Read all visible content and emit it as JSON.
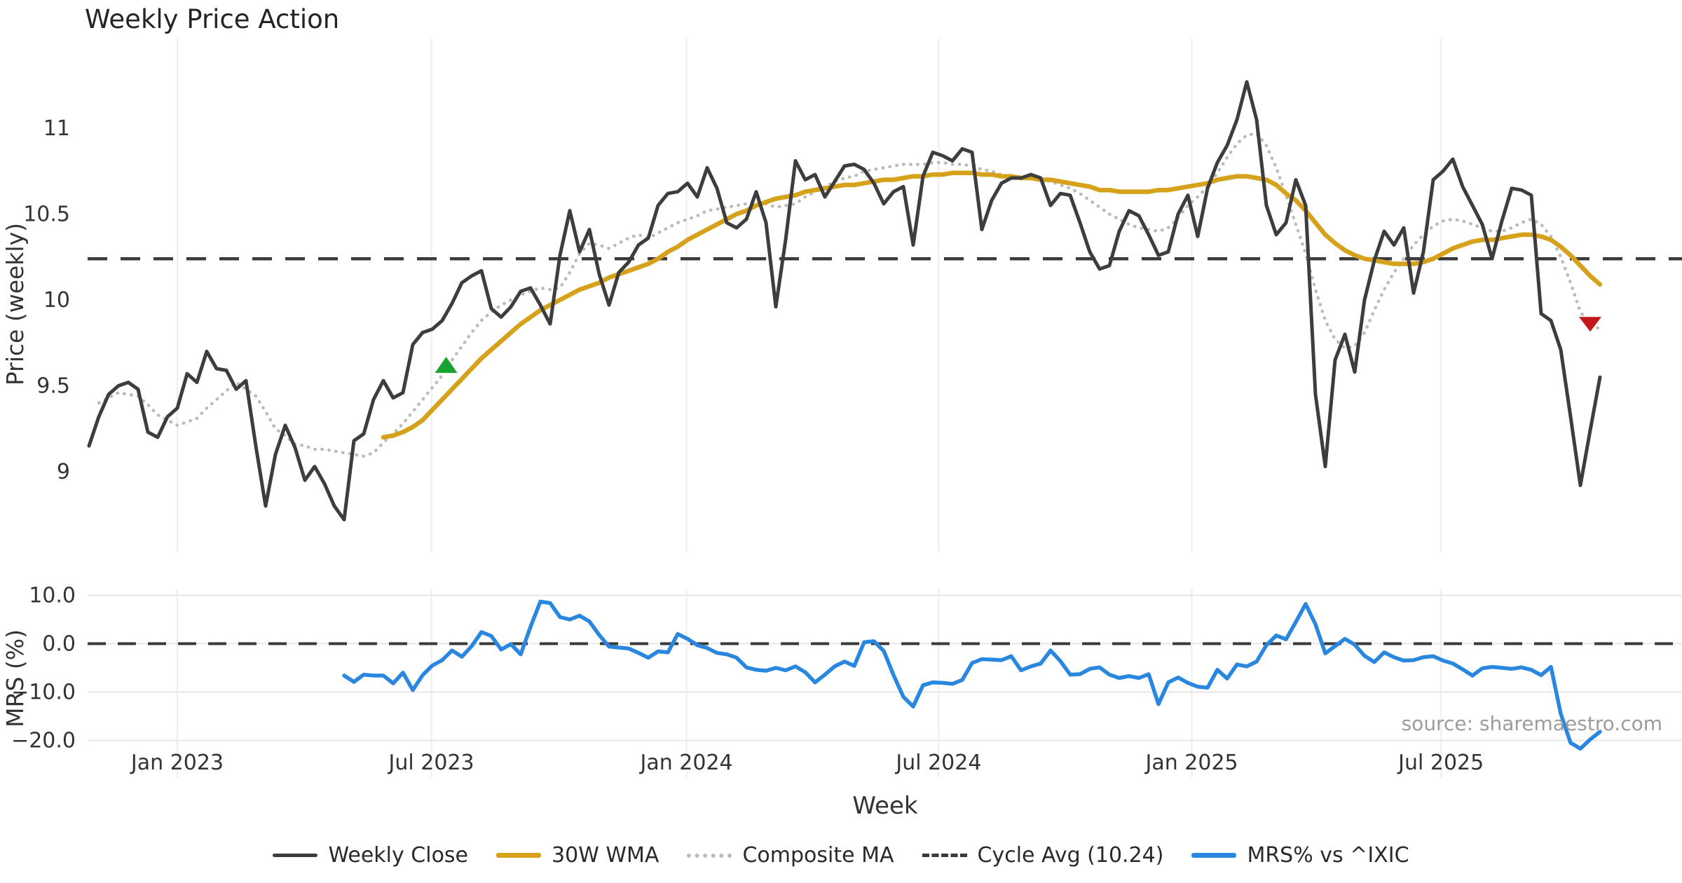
{
  "title": "Weekly Price Action",
  "source_note": "source: sharemaestro.com",
  "colors": {
    "weekly_close": "#3d3d3d",
    "wma_30w": "#d6a21b",
    "composite_ma": "#bbbbbb",
    "cycle_avg": "#3a3a3a",
    "mrs": "#2a87e0",
    "buy_marker": "#18a22f",
    "sell_marker": "#c51717",
    "grid": "#ededed",
    "grid_h": "#e7e7e7",
    "tick_text": "#3c3c3c"
  },
  "legend": [
    {
      "label": "Weekly Close",
      "swatch": "solid",
      "color": "#3d3d3d"
    },
    {
      "label": "30W WMA",
      "swatch": "solid-thick",
      "color": "#d6a21b"
    },
    {
      "label": "Composite MA",
      "swatch": "dotted",
      "color": "#bbbbbb"
    },
    {
      "label": "Cycle Avg (10.24)",
      "swatch": "dashed",
      "color": "#3a3a3a"
    },
    {
      "label": "MRS% vs ^IXIC",
      "swatch": "solid-thick",
      "color": "#2a87e0"
    }
  ],
  "chart_data": {
    "type": "line",
    "xlabel": "Week",
    "xticks": [
      {
        "label": "Jan 2023",
        "week": 9.0
      },
      {
        "label": "Jul 2023",
        "week": 34.9
      },
      {
        "label": "Jan 2024",
        "week": 60.9
      },
      {
        "label": "Jul 2024",
        "week": 86.6
      },
      {
        "label": "Jan 2025",
        "week": 112.4
      },
      {
        "label": "Jul 2025",
        "week": 137.8
      }
    ],
    "panels": [
      {
        "name": "price",
        "ylabel": "Price (weekly)",
        "ylim": [
          8.52,
          11.52
        ],
        "yticks": [
          {
            "label": "11",
            "value": 11
          },
          {
            "label": "10.5",
            "value": 10.5
          },
          {
            "label": "10",
            "value": 10
          },
          {
            "label": "9.5",
            "value": 9.5
          },
          {
            "label": "9",
            "value": 9
          }
        ],
        "cycle_avg": 10.24,
        "series": [
          {
            "name": "Weekly Close",
            "start_week": 0,
            "values": [
              9.15,
              9.32,
              9.45,
              9.5,
              9.52,
              9.48,
              9.23,
              9.2,
              9.32,
              9.37,
              9.57,
              9.52,
              9.7,
              9.6,
              9.59,
              9.48,
              9.53,
              9.15,
              8.8,
              9.1,
              9.27,
              9.14,
              8.95,
              9.03,
              8.93,
              8.8,
              8.72,
              9.18,
              9.22,
              9.42,
              9.53,
              9.43,
              9.46,
              9.74,
              9.81,
              9.83,
              9.88,
              9.98,
              10.1,
              10.14,
              10.17,
              9.95,
              9.9,
              9.96,
              10.05,
              10.07,
              9.97,
              9.86,
              10.26,
              10.52,
              10.28,
              10.41,
              10.15,
              9.97,
              10.16,
              10.22,
              10.32,
              10.36,
              10.55,
              10.62,
              10.63,
              10.68,
              10.6,
              10.77,
              10.65,
              10.45,
              10.42,
              10.47,
              10.63,
              10.45,
              9.96,
              10.35,
              10.81,
              10.7,
              10.73,
              10.6,
              10.69,
              10.78,
              10.79,
              10.76,
              10.68,
              10.56,
              10.63,
              10.66,
              10.32,
              10.72,
              10.86,
              10.84,
              10.81,
              10.88,
              10.86,
              10.41,
              10.58,
              10.68,
              10.71,
              10.71,
              10.73,
              10.71,
              10.55,
              10.62,
              10.61,
              10.45,
              10.28,
              10.18,
              10.2,
              10.4,
              10.52,
              10.49,
              10.38,
              10.26,
              10.28,
              10.5,
              10.61,
              10.37,
              10.65,
              10.8,
              10.9,
              11.05,
              11.27,
              11.05,
              10.55,
              10.38,
              10.45,
              10.7,
              10.55,
              9.45,
              9.03,
              9.65,
              9.8,
              9.58,
              10.0,
              10.23,
              10.4,
              10.32,
              10.42,
              10.04,
              10.28,
              10.7,
              10.75,
              10.82,
              10.66,
              10.55,
              10.44,
              10.24,
              10.46,
              10.65,
              10.64,
              10.61,
              9.92,
              9.88,
              9.71,
              9.32,
              8.92,
              9.24,
              9.55
            ]
          },
          {
            "name": "30W WMA",
            "start_week": 30,
            "values": [
              9.2,
              9.21,
              9.23,
              9.26,
              9.3,
              9.36,
              9.42,
              9.48,
              9.54,
              9.6,
              9.66,
              9.71,
              9.76,
              9.81,
              9.86,
              9.9,
              9.94,
              9.97,
              10.0,
              10.03,
              10.06,
              10.08,
              10.1,
              10.13,
              10.15,
              10.17,
              10.19,
              10.21,
              10.24,
              10.28,
              10.31,
              10.35,
              10.38,
              10.41,
              10.44,
              10.47,
              10.5,
              10.52,
              10.55,
              10.57,
              10.59,
              10.6,
              10.61,
              10.63,
              10.64,
              10.65,
              10.66,
              10.67,
              10.67,
              10.68,
              10.69,
              10.7,
              10.7,
              10.71,
              10.72,
              10.72,
              10.73,
              10.73,
              10.74,
              10.74,
              10.74,
              10.73,
              10.73,
              10.72,
              10.72,
              10.71,
              10.71,
              10.7,
              10.7,
              10.69,
              10.68,
              10.67,
              10.66,
              10.64,
              10.64,
              10.63,
              10.63,
              10.63,
              10.63,
              10.64,
              10.64,
              10.65,
              10.66,
              10.67,
              10.68,
              10.7,
              10.71,
              10.72,
              10.72,
              10.71,
              10.7,
              10.67,
              10.62,
              10.58,
              10.52,
              10.45,
              10.38,
              10.33,
              10.29,
              10.26,
              10.24,
              10.23,
              10.22,
              10.21,
              10.21,
              10.21,
              10.22,
              10.24,
              10.27,
              10.3,
              10.32,
              10.34,
              10.35,
              10.35,
              10.36,
              10.37,
              10.38,
              10.38,
              10.37,
              10.35,
              10.31,
              10.26,
              10.2,
              10.14,
              10.09
            ]
          },
          {
            "name": "Composite MA",
            "start_week": 1,
            "values": [
              9.4,
              9.43,
              9.46,
              9.45,
              9.44,
              9.39,
              9.33,
              9.3,
              9.27,
              9.29,
              9.31,
              9.37,
              9.42,
              9.47,
              9.52,
              9.48,
              9.44,
              9.35,
              9.25,
              9.21,
              9.16,
              9.15,
              9.13,
              9.13,
              9.12,
              9.11,
              9.1,
              9.09,
              9.11,
              9.17,
              9.22,
              9.28,
              9.35,
              9.42,
              9.49,
              9.56,
              9.65,
              9.73,
              9.81,
              9.88,
              9.93,
              9.97,
              10.0,
              10.03,
              10.05,
              10.07,
              10.06,
              10.07,
              10.16,
              10.27,
              10.33,
              10.32,
              10.3,
              10.33,
              10.36,
              10.38,
              10.36,
              10.39,
              10.42,
              10.45,
              10.47,
              10.49,
              10.52,
              10.53,
              10.54,
              10.55,
              10.56,
              10.57,
              10.56,
              10.54,
              10.55,
              10.56,
              10.6,
              10.63,
              10.66,
              10.69,
              10.71,
              10.72,
              10.75,
              10.76,
              10.77,
              10.78,
              10.79,
              10.79,
              10.79,
              10.8,
              10.8,
              10.79,
              10.79,
              10.78,
              10.76,
              10.75,
              10.73,
              10.72,
              10.71,
              10.71,
              10.7,
              10.69,
              10.67,
              10.65,
              10.62,
              10.58,
              10.54,
              10.5,
              10.47,
              10.44,
              10.42,
              10.41,
              10.4,
              10.42,
              10.48,
              10.55,
              10.6,
              10.66,
              10.74,
              10.83,
              10.91,
              10.96,
              10.97,
              10.9,
              10.77,
              10.61,
              10.44,
              10.27,
              10.06,
              9.88,
              9.77,
              9.72,
              9.73,
              9.81,
              9.94,
              10.06,
              10.16,
              10.24,
              10.32,
              10.38,
              10.43,
              10.46,
              10.47,
              10.46,
              10.44,
              10.42,
              10.4,
              10.4,
              10.42,
              10.45,
              10.47,
              10.44,
              10.37,
              10.25,
              10.1,
              9.93,
              9.86,
              9.83
            ]
          }
        ],
        "markers": [
          {
            "shape": "triangle-up",
            "week": 36.4,
            "price": 9.62,
            "color": "#18a22f"
          },
          {
            "shape": "triangle-down",
            "week": 153.0,
            "price": 9.86,
            "color": "#c51717"
          }
        ]
      },
      {
        "name": "mrs",
        "ylabel": "MRS (%)",
        "ylim": [
          -27.8,
          11.4
        ],
        "yticks": [
          {
            "label": "10.0",
            "value": 10
          },
          {
            "label": "0.0",
            "value": 0
          },
          {
            "label": "−10.0",
            "value": -10
          },
          {
            "label": "−20.0",
            "value": -20
          }
        ],
        "zero_line": 0,
        "series": [
          {
            "name": "MRS% vs ^IXIC",
            "start_week": 26,
            "values": [
              -6.6,
              -7.9,
              -6.4,
              -6.6,
              -6.6,
              -8.2,
              -6.0,
              -9.6,
              -6.5,
              -4.5,
              -3.4,
              -1.4,
              -2.7,
              -0.5,
              2.4,
              1.6,
              -1.2,
              -0.1,
              -2.2,
              3.5,
              8.7,
              8.4,
              5.5,
              5.0,
              5.8,
              4.6,
              1.8,
              -0.6,
              -0.8,
              -1.0,
              -1.9,
              -2.9,
              -1.6,
              -1.8,
              2.0,
              1.0,
              -0.3,
              -0.9,
              -1.9,
              -2.2,
              -2.9,
              -4.9,
              -5.4,
              -5.6,
              -5.0,
              -5.5,
              -4.7,
              -5.9,
              -8.0,
              -6.4,
              -4.7,
              -3.7,
              -4.6,
              0.3,
              0.5,
              -1.5,
              -6.5,
              -11.0,
              -13.0,
              -8.6,
              -8.0,
              -8.1,
              -8.3,
              -7.5,
              -4.0,
              -3.2,
              -3.3,
              -3.4,
              -2.6,
              -5.5,
              -4.7,
              -4.1,
              -1.4,
              -3.6,
              -6.4,
              -6.3,
              -5.2,
              -4.9,
              -6.4,
              -7.1,
              -6.7,
              -7.1,
              -6.3,
              -12.5,
              -8.0,
              -7.0,
              -8.1,
              -8.9,
              -9.1,
              -5.4,
              -7.2,
              -4.3,
              -4.7,
              -3.7,
              -0.3,
              1.7,
              0.9,
              4.5,
              8.2,
              4.0,
              -2.0,
              -0.5,
              1.0,
              -0.2,
              -2.5,
              -3.8,
              -1.8,
              -2.8,
              -3.5,
              -3.4,
              -2.8,
              -2.6,
              -3.5,
              -4.1,
              -5.3,
              -6.6,
              -5.1,
              -4.8,
              -5.0,
              -5.2,
              -4.9,
              -5.4,
              -6.5,
              -4.8,
              -14.5,
              -20.5,
              -21.7,
              -19.8,
              -18.2
            ]
          }
        ]
      }
    ]
  }
}
